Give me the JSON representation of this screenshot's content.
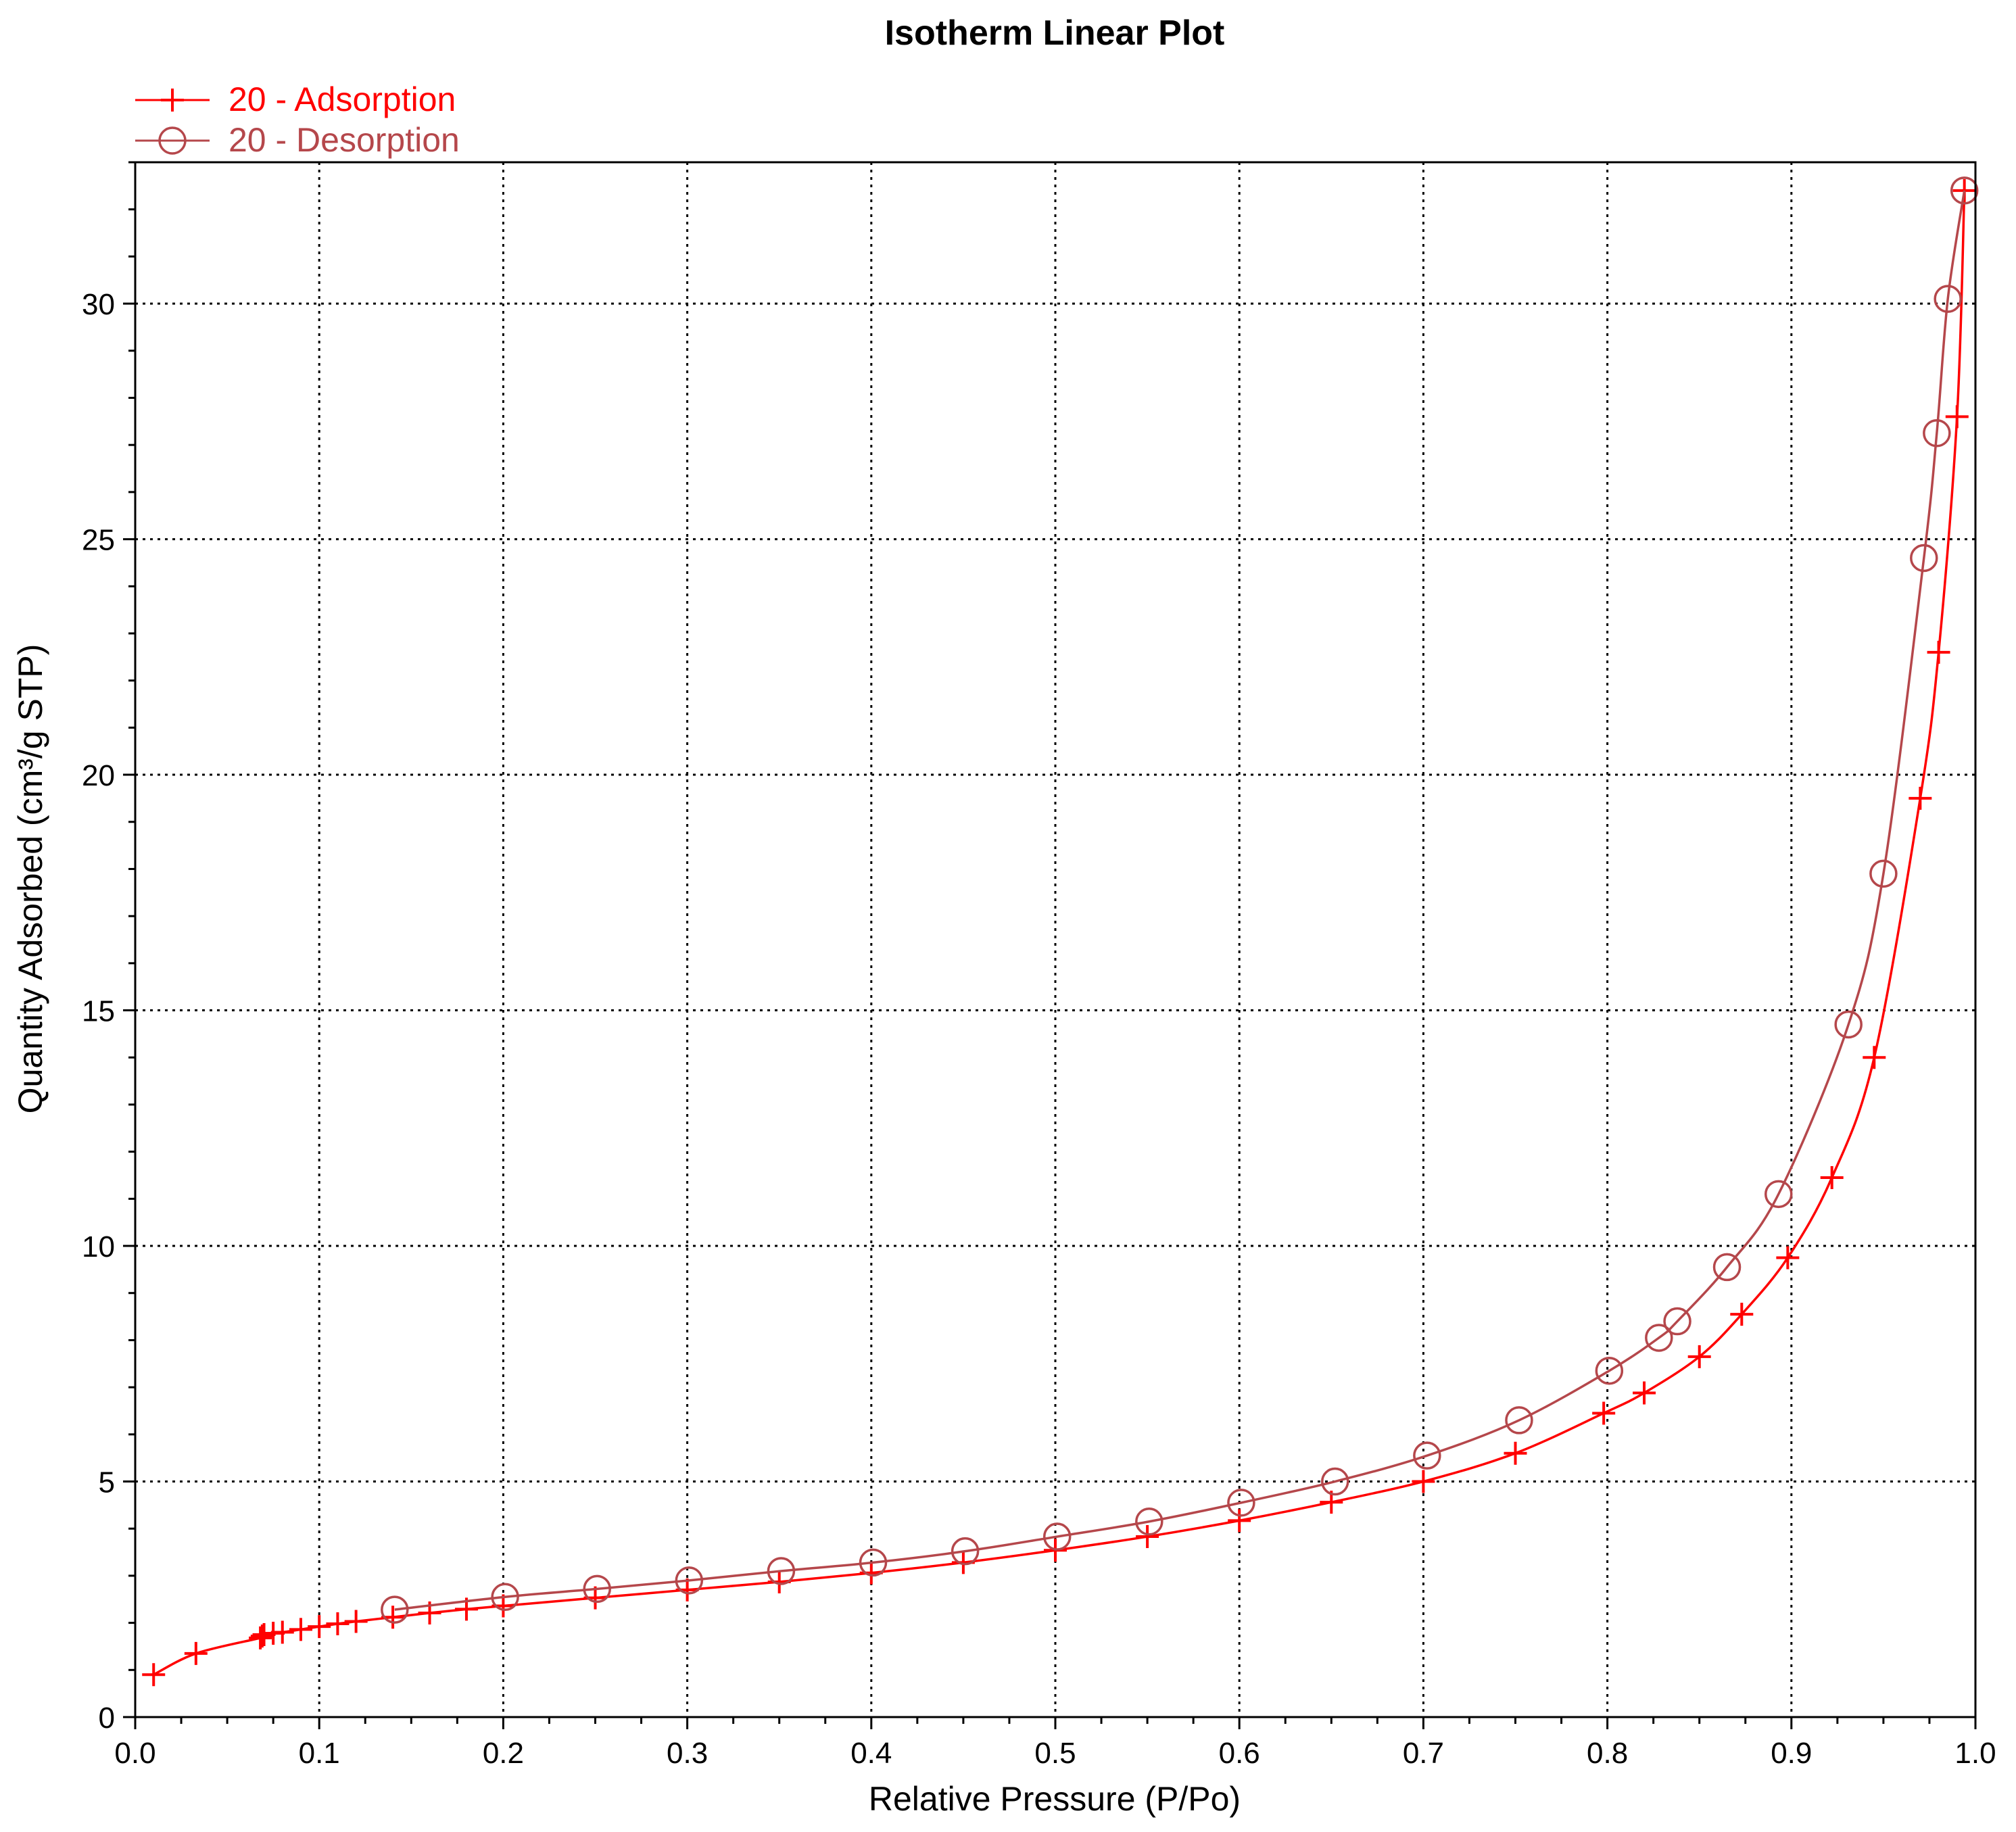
{
  "chart_data": {
    "type": "line",
    "title": "Isotherm Linear Plot",
    "xlabel": "Relative Pressure (P/Po)",
    "ylabel": "Quantity Adsorbed (cm³/g STP)",
    "xlim": [
      0.0,
      1.0
    ],
    "ylim": [
      0,
      33
    ],
    "x_ticks": [
      0.0,
      0.1,
      0.2,
      0.3,
      0.4,
      0.5,
      0.6,
      0.7,
      0.8,
      0.9,
      1.0
    ],
    "x_tick_labels": [
      "0.0",
      "0.1",
      "0.2",
      "0.3",
      "0.4",
      "0.5",
      "0.6",
      "0.7",
      "0.8",
      "0.9",
      "1.0"
    ],
    "y_ticks": [
      0,
      5,
      10,
      15,
      20,
      25,
      30
    ],
    "y_tick_labels": [
      "0",
      "5",
      "10",
      "15",
      "20",
      "25",
      "30"
    ],
    "grid": true,
    "legend_position": "top-left",
    "series": [
      {
        "name": "20 - Adsorption",
        "marker": "plus",
        "color": "#ff0000",
        "points": [
          [
            0.01,
            0.9
          ],
          [
            0.033,
            1.35
          ],
          [
            0.068,
            1.68
          ],
          [
            0.069,
            1.72
          ],
          [
            0.07,
            1.75
          ],
          [
            0.075,
            1.78
          ],
          [
            0.08,
            1.8
          ],
          [
            0.09,
            1.86
          ],
          [
            0.1,
            1.92
          ],
          [
            0.11,
            1.98
          ],
          [
            0.12,
            2.03
          ],
          [
            0.14,
            2.12
          ],
          [
            0.16,
            2.21
          ],
          [
            0.18,
            2.29
          ],
          [
            0.2,
            2.36
          ],
          [
            0.25,
            2.53
          ],
          [
            0.3,
            2.7
          ],
          [
            0.35,
            2.87
          ],
          [
            0.4,
            3.06
          ],
          [
            0.45,
            3.28
          ],
          [
            0.5,
            3.54
          ],
          [
            0.55,
            3.83
          ],
          [
            0.6,
            4.17
          ],
          [
            0.65,
            4.56
          ],
          [
            0.7,
            5.0
          ],
          [
            0.75,
            5.6
          ],
          [
            0.798,
            6.45
          ],
          [
            0.82,
            6.88
          ],
          [
            0.85,
            7.65
          ],
          [
            0.873,
            8.55
          ],
          [
            0.898,
            9.75
          ],
          [
            0.922,
            11.45
          ],
          [
            0.945,
            14.0
          ],
          [
            0.97,
            19.5
          ],
          [
            0.98,
            22.6
          ],
          [
            0.99,
            27.6
          ],
          [
            0.994,
            32.4
          ]
        ]
      },
      {
        "name": "20 - Desorption",
        "marker": "circle",
        "color": "#b5474b",
        "points": [
          [
            0.994,
            32.4
          ],
          [
            0.985,
            30.1
          ],
          [
            0.979,
            27.25
          ],
          [
            0.972,
            24.6
          ],
          [
            0.95,
            17.9
          ],
          [
            0.931,
            14.7
          ],
          [
            0.893,
            11.1
          ],
          [
            0.865,
            9.55
          ],
          [
            0.838,
            8.4
          ],
          [
            0.828,
            8.05
          ],
          [
            0.801,
            7.35
          ],
          [
            0.752,
            6.3
          ],
          [
            0.702,
            5.55
          ],
          [
            0.652,
            5.0
          ],
          [
            0.601,
            4.55
          ],
          [
            0.551,
            4.15
          ],
          [
            0.501,
            3.83
          ],
          [
            0.451,
            3.52
          ],
          [
            0.401,
            3.28
          ],
          [
            0.351,
            3.1
          ],
          [
            0.301,
            2.9
          ],
          [
            0.251,
            2.72
          ],
          [
            0.201,
            2.55
          ],
          [
            0.141,
            2.28
          ]
        ]
      }
    ]
  }
}
